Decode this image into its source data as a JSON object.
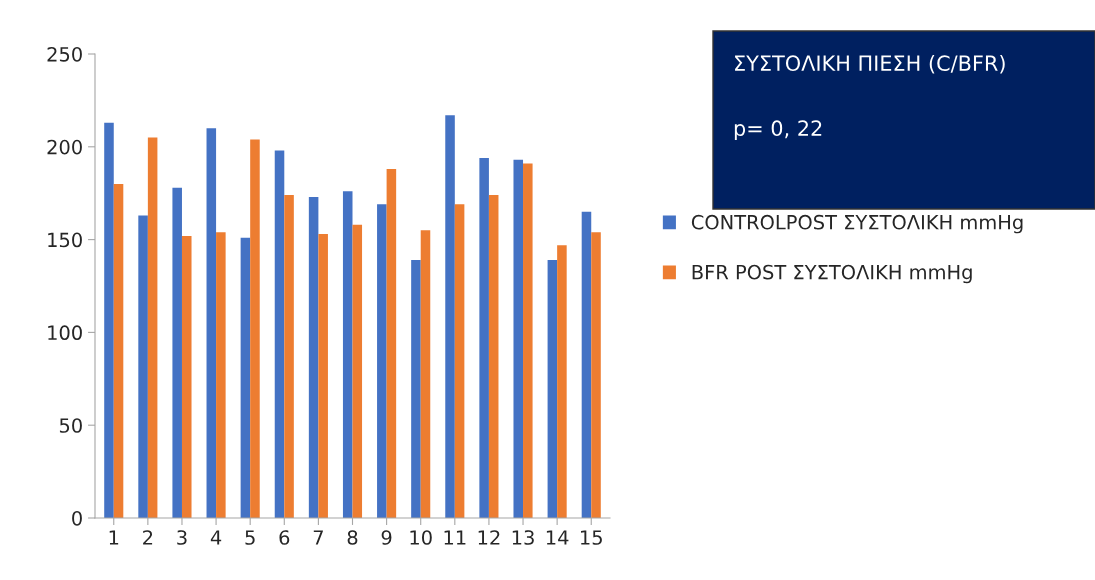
{
  "chart_data": {
    "type": "bar",
    "categories": [
      "1",
      "2",
      "3",
      "4",
      "5",
      "6",
      "7",
      "8",
      "9",
      "10",
      "11",
      "12",
      "13",
      "14",
      "15"
    ],
    "series": [
      {
        "name": "CONTROLPOST ΣΥΣΤΟΛΙΚΗ mmHg",
        "color": "#4472c4",
        "values": [
          213,
          163,
          178,
          210,
          151,
          198,
          173,
          176,
          169,
          139,
          217,
          194,
          193,
          139,
          165
        ]
      },
      {
        "name": "BFR POST ΣΥΣΤΟΛΙΚΗ mmHg",
        "color": "#ed7d31",
        "values": [
          180,
          205,
          152,
          154,
          204,
          174,
          153,
          158,
          188,
          155,
          169,
          174,
          191,
          147,
          154
        ]
      }
    ],
    "ylim": [
      0,
      250
    ],
    "yticks": [
      0,
      50,
      100,
      150,
      200,
      250
    ],
    "grid": false,
    "legend": "right",
    "annotations": [
      "ΣΥΣΤΟΛΙΚΗ ΠΙΕΣΗ (C/BFR)",
      "p= 0, 22"
    ]
  }
}
